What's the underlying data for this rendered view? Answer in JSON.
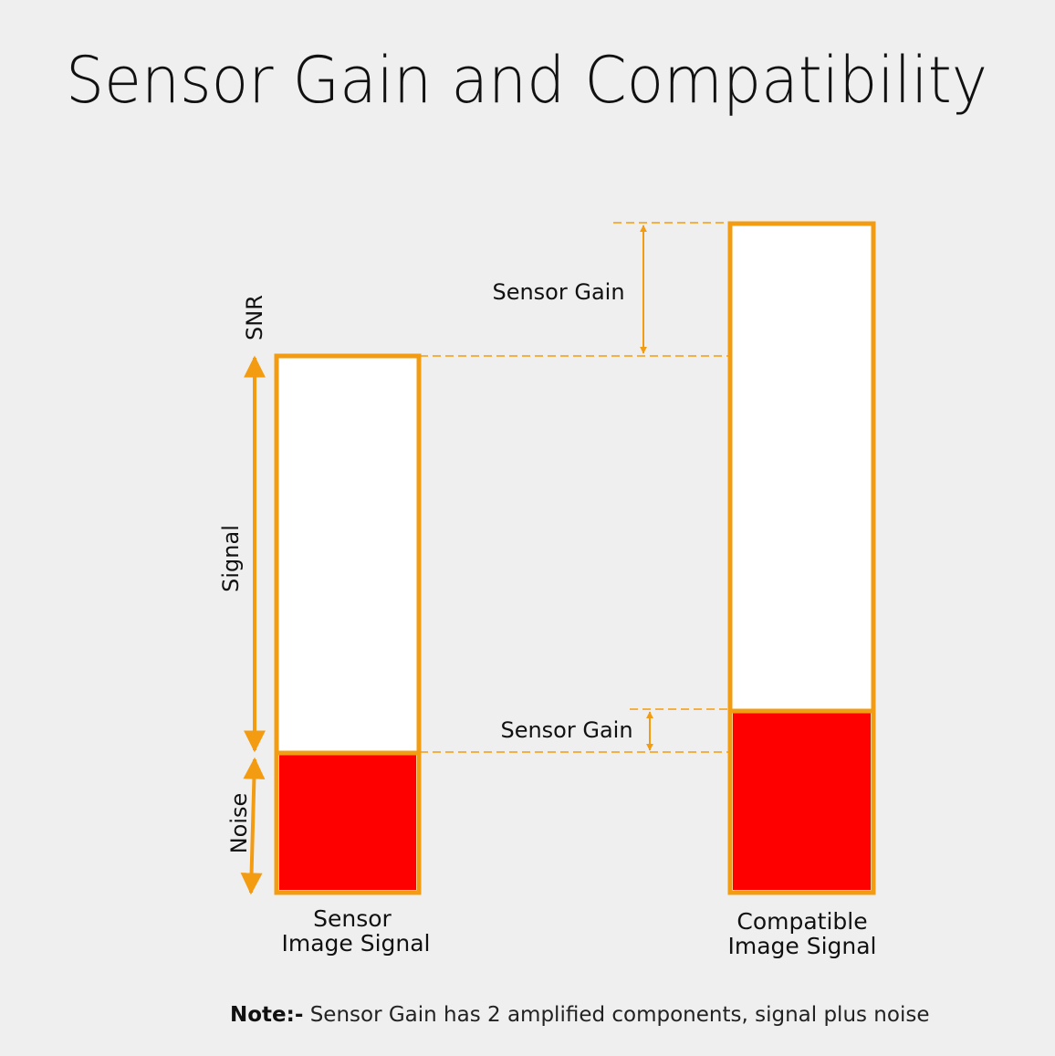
{
  "title": "Sensor Gain and Compatibility",
  "colors": {
    "background": "#efefef",
    "outline": "#f39c12",
    "noise_fill": "#ff0000",
    "signal_fill": "#ffffff"
  },
  "axis_labels": {
    "snr": "SNR",
    "signal": "Signal",
    "noise": "Noise"
  },
  "gain_labels": {
    "signal_gain": "Sensor Gain",
    "noise_gain": "Sensor Gain"
  },
  "bars": {
    "sensor": {
      "caption_line1": "Sensor",
      "caption_line2": "Image Signal"
    },
    "compatible": {
      "caption_line1": "Compatible",
      "caption_line2": "Image Signal"
    }
  },
  "note": {
    "prefix": "Note:-",
    "text": " Sensor Gain has 2 amplified components, signal plus noise"
  },
  "icons": [
    "arrow-double-vertical-icon"
  ]
}
